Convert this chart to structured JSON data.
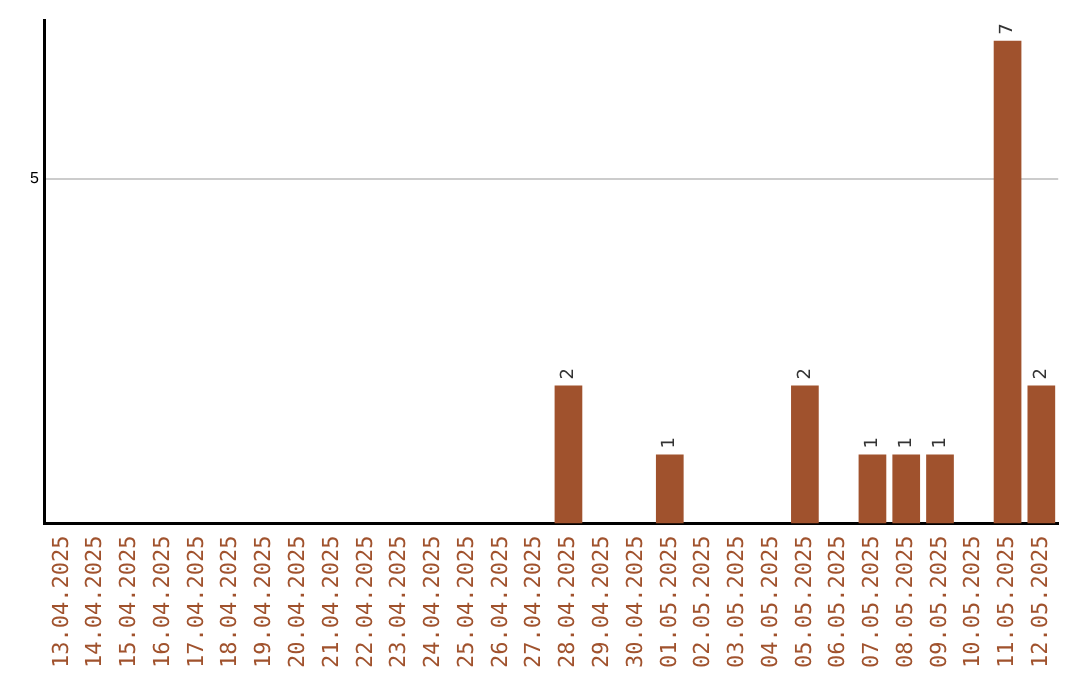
{
  "chart_data": {
    "type": "bar",
    "ylim": [
      0,
      7.3
    ],
    "yticks": [
      5
    ],
    "grid": "y",
    "data_labels": true,
    "categories": [
      "13.04.2025",
      "14.04.2025",
      "15.04.2025",
      "16.04.2025",
      "17.04.2025",
      "18.04.2025",
      "19.04.2025",
      "20.04.2025",
      "21.04.2025",
      "22.04.2025",
      "23.04.2025",
      "24.04.2025",
      "25.04.2025",
      "26.04.2025",
      "27.04.2025",
      "28.04.2025",
      "29.04.2025",
      "30.04.2025",
      "01.05.2025",
      "02.05.2025",
      "03.05.2025",
      "04.05.2025",
      "05.05.2025",
      "06.05.2025",
      "07.05.2025",
      "08.05.2025",
      "09.05.2025",
      "10.05.2025",
      "11.05.2025",
      "12.05.2025"
    ],
    "values": [
      null,
      null,
      null,
      null,
      null,
      null,
      null,
      null,
      null,
      null,
      null,
      null,
      null,
      null,
      null,
      2,
      null,
      null,
      1,
      null,
      null,
      null,
      2,
      null,
      1,
      1,
      1,
      null,
      7,
      2
    ],
    "color": "#a0522d"
  }
}
